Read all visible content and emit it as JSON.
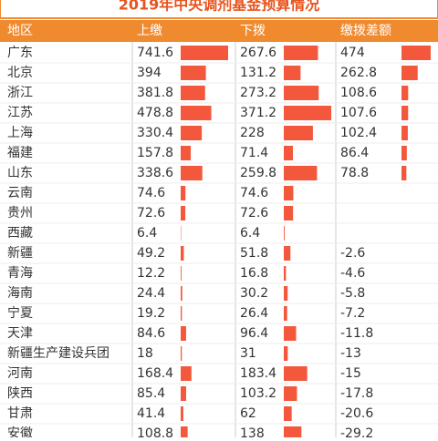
{
  "header": {
    "title": "2019年中央调剂基金预算情况"
  },
  "table": {
    "columns": [
      "地区",
      "上缴",
      "下拨",
      "缴拨差额"
    ],
    "rows": [
      [
        "广东",
        741.6,
        267.6,
        474
      ],
      [
        "北京",
        394,
        131.2,
        262.8
      ],
      [
        "浙江",
        381.8,
        273.2,
        108.6
      ],
      [
        "江苏",
        478.8,
        371.2,
        107.6
      ],
      [
        "上海",
        330.4,
        228,
        102.4
      ],
      [
        "福建",
        157.8,
        71.4,
        86.4
      ],
      [
        "山东",
        338.6,
        259.8,
        78.8
      ],
      [
        "云南",
        74.6,
        74.6,
        null
      ],
      [
        "贵州",
        72.6,
        72.6,
        null
      ],
      [
        "西藏",
        6.4,
        6.4,
        null
      ],
      [
        "新疆",
        49.2,
        51.8,
        -2.6
      ],
      [
        "青海",
        12.2,
        16.8,
        -4.6
      ],
      [
        "海南",
        24.4,
        30.2,
        -5.8
      ],
      [
        "宁夏",
        19.2,
        26.4,
        -7.2
      ],
      [
        "天津",
        84.6,
        96.4,
        -11.8
      ],
      [
        "新疆生产建设兵团",
        18,
        31,
        -13
      ],
      [
        "河南",
        168.4,
        183.4,
        -15
      ],
      [
        "陕西",
        85.4,
        103.2,
        -17.8
      ],
      [
        "甘肃",
        41.4,
        62,
        -20.6
      ],
      [
        "安徽",
        108.8,
        138,
        -29.2
      ]
    ]
  }
}
